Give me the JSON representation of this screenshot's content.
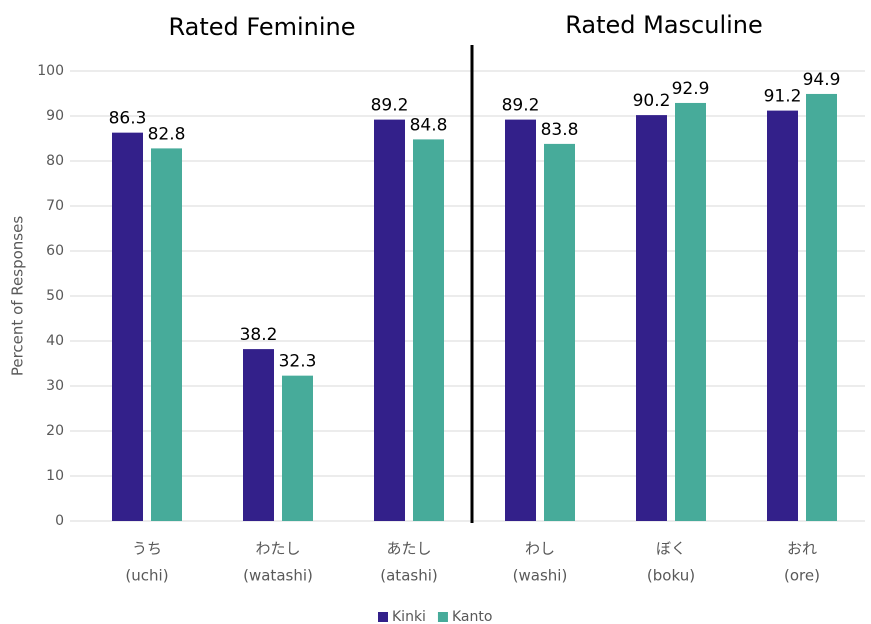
{
  "chart_data": {
    "type": "bar",
    "annotations": [
      "Rated Feminine",
      "Rated Masculine"
    ],
    "y_label": "Percent of Responses",
    "categories": [
      [
        "うち",
        "(uchi)"
      ],
      [
        "わたし",
        "(watashi)"
      ],
      [
        "あたし",
        "(atashi)"
      ],
      [
        "わし",
        "(washi)"
      ],
      [
        "ぼく",
        "(boku)"
      ],
      [
        "おれ",
        "(ore)"
      ]
    ],
    "series": [
      {
        "name": "Kinki",
        "color": "#33208a",
        "values": [
          86.3,
          38.2,
          89.2,
          89.2,
          90.2,
          91.2
        ]
      },
      {
        "name": "Kanto",
        "color": "#47ab9a",
        "values": [
          82.8,
          32.3,
          84.8,
          83.8,
          92.9,
          94.9
        ]
      }
    ],
    "ylim": [
      0,
      100
    ],
    "yticks": [
      0,
      10,
      20,
      30,
      40,
      50,
      60,
      70,
      80,
      90,
      100
    ],
    "grid": true,
    "legend": "bottom"
  }
}
